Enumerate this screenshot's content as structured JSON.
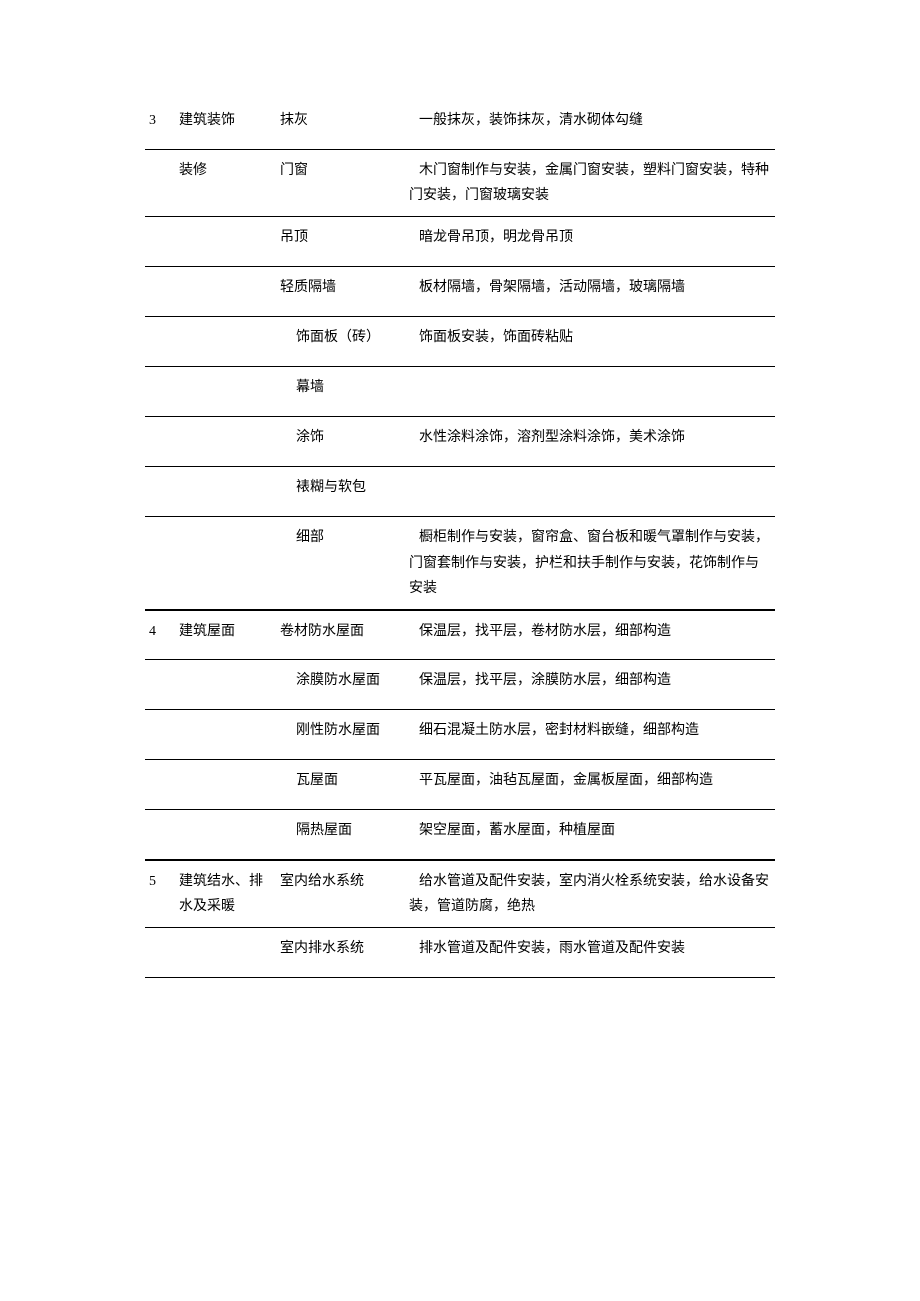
{
  "rows": [
    {
      "num": "3",
      "cat": "建筑装饰",
      "cat_cont": "装修",
      "sub": "抹灰",
      "desc": "一般抹灰，装饰抹灰，清水砌体勾缝"
    },
    {
      "num": "",
      "cat": "",
      "sub": "门窗",
      "desc": "木门窗制作与安装，金属门窗安装，塑料门窗安装，特种门安装，门窗玻璃安装"
    },
    {
      "num": "",
      "cat": "",
      "sub": "吊顶",
      "desc": "暗龙骨吊顶，明龙骨吊顶"
    },
    {
      "num": "",
      "cat": "",
      "sub": "轻质隔墙",
      "desc": "板材隔墙，骨架隔墙，活动隔墙，玻璃隔墙"
    },
    {
      "num": "",
      "cat": "",
      "sub": "饰面板（砖）",
      "desc": "饰面板安装，饰面砖粘贴"
    },
    {
      "num": "",
      "cat": "",
      "sub": "幕墙",
      "desc": ""
    },
    {
      "num": "",
      "cat": "",
      "sub": "涂饰",
      "desc": "水性涂料涂饰，溶剂型涂料涂饰，美术涂饰"
    },
    {
      "num": "",
      "cat": "",
      "sub": "裱糊与软包",
      "desc": ""
    },
    {
      "num": "",
      "cat": "",
      "sub": "细部",
      "desc": "橱柜制作与安装，窗帘盒、窗台板和暖气罩制作与安装，门窗套制作与安装，护栏和扶手制作与安装，花饰制作与安装"
    },
    {
      "num": "4",
      "cat": "建筑屋面",
      "sub": "卷材防水屋面",
      "desc": "保温层，找平层，卷材防水层，细部构造"
    },
    {
      "num": "",
      "cat": "",
      "sub": "涂膜防水屋面",
      "desc": "保温层，找平层，涂膜防水层，细部构造"
    },
    {
      "num": "",
      "cat": "",
      "sub": "刚性防水屋面",
      "desc": "细石混凝土防水层，密封材料嵌缝，细部构造"
    },
    {
      "num": "",
      "cat": "",
      "sub": "瓦屋面",
      "desc": "平瓦屋面，油毡瓦屋面，金属板屋面，细部构造"
    },
    {
      "num": "",
      "cat": "",
      "sub": "隔热屋面",
      "desc": "架空屋面，蓄水屋面，种植屋面"
    },
    {
      "num": "5",
      "cat": "建筑结水、排水及采暖",
      "sub": "室内给水系统",
      "desc": "给水管道及配件安装，室内消火栓系统安装，给水设备安装，管道防腐，绝热"
    },
    {
      "num": "",
      "cat": "",
      "sub": "室内排水系统",
      "desc": "排水管道及配件安装，雨水管道及配件安装"
    }
  ]
}
